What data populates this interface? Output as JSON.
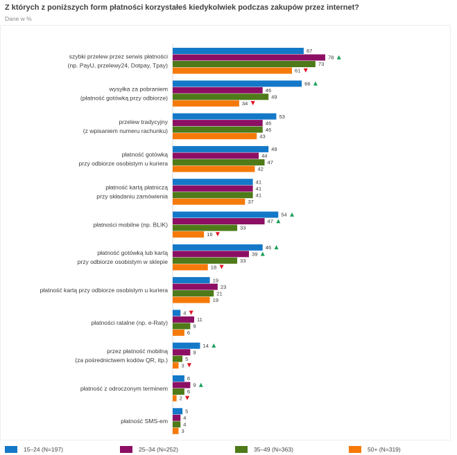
{
  "chart_data": {
    "type": "bar",
    "orientation": "horizontal",
    "title": "Z których z poniższych form płatności korzystałeś kiedykolwiek podczas zakupów przez internet?",
    "subtitle": "Dane w %",
    "xlim": [
      0,
      100
    ],
    "categories": [
      [
        "szybki przelew przez serwis płatności",
        "(np. PayU, przelewy24, Dotpay, Tpay)"
      ],
      [
        "wysyłka za pobraniem",
        "(płatność gotówką przy odbiorze)"
      ],
      [
        "przelew tradycyjny",
        "(z wpisaniem numeru rachunku)"
      ],
      [
        "płatność gotówką",
        "przy odbiorze osobistym u kuriera"
      ],
      [
        "płatność kartą płatniczą",
        "przy składaniu zamówienia"
      ],
      [
        "płatności mobilne (np. BLIK)"
      ],
      [
        "płatność gotówką lub kartą",
        "przy odbiorze osobistym w sklepie"
      ],
      [
        "płatność kartą przy odbiorze osobistym u kuriera"
      ],
      [
        "płatności ratalne (np. e-Raty)"
      ],
      [
        "przez płatność mobilną",
        "(za pośrednictwem kodów QR, itp.)"
      ],
      [
        "płatność z odroczonym terminem"
      ],
      [
        "płatność SMS-em"
      ]
    ],
    "series": [
      {
        "name": "15–24 (N=197)",
        "color": "#1478c8",
        "values": [
          67,
          66,
          53,
          49,
          41,
          54,
          46,
          19,
          4,
          14,
          6,
          5
        ],
        "markers": [
          "",
          "up",
          "",
          "",
          "",
          "up",
          "up",
          "",
          "down",
          "up",
          "",
          ""
        ]
      },
      {
        "name": "25–34 (N=252)",
        "color": "#8c0f64",
        "values": [
          78,
          46,
          46,
          44,
          41,
          47,
          39,
          23,
          11,
          9,
          9,
          4
        ],
        "markers": [
          "up",
          "",
          "",
          "",
          "",
          "up",
          "up",
          "",
          "",
          "",
          "up",
          ""
        ]
      },
      {
        "name": "35–49 (N=363)",
        "color": "#4e7a19",
        "values": [
          73,
          49,
          46,
          47,
          41,
          33,
          33,
          21,
          9,
          5,
          6,
          4
        ],
        "markers": [
          "",
          "",
          "",
          "",
          "",
          "",
          "",
          "",
          "",
          "",
          "",
          ""
        ]
      },
      {
        "name": "50+ (N=319)",
        "color": "#f57a0a",
        "values": [
          61,
          34,
          43,
          42,
          37,
          16,
          18,
          19,
          6,
          3,
          2,
          3
        ],
        "markers": [
          "down",
          "down",
          "",
          "",
          "",
          "down",
          "down",
          "",
          "",
          "down",
          "down",
          ""
        ]
      }
    ],
    "marker_colors": {
      "up": "#1aa05a",
      "down": "#e01020"
    },
    "legend_position": "bottom"
  }
}
